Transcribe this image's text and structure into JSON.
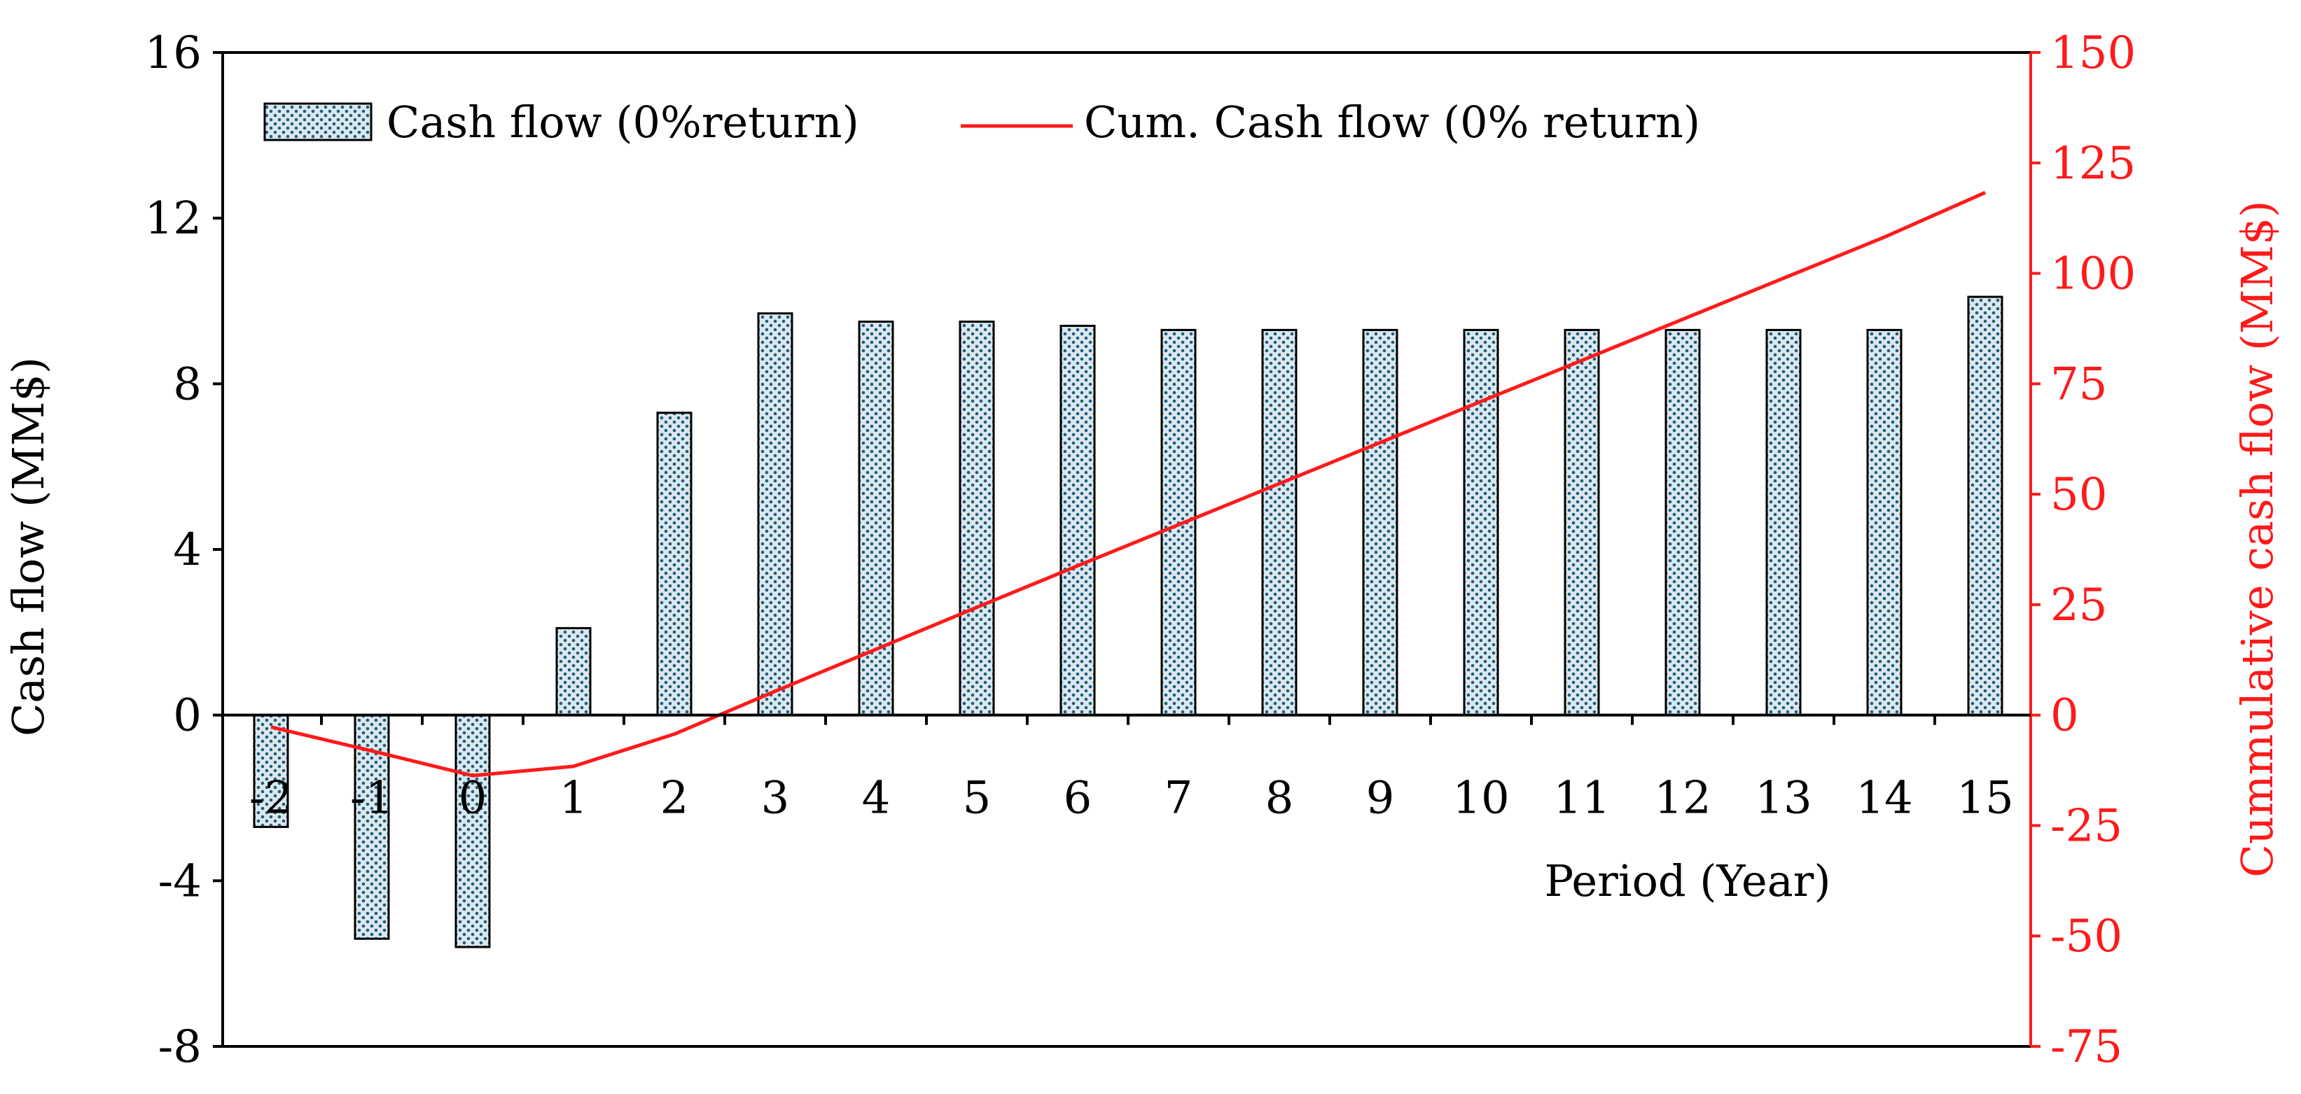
{
  "chart_data": {
    "type": "bar",
    "categories": [
      "-2",
      "-1",
      "0",
      "1",
      "2",
      "3",
      "4",
      "5",
      "6",
      "7",
      "8",
      "9",
      "10",
      "11",
      "12",
      "13",
      "14",
      "15"
    ],
    "series": [
      {
        "name": "Cash flow (0%return)",
        "type": "bar",
        "axis": "left",
        "values": [
          -2.7,
          -5.4,
          -5.6,
          2.1,
          7.3,
          9.7,
          9.5,
          9.5,
          9.4,
          9.3,
          9.3,
          9.3,
          9.3,
          9.3,
          9.3,
          9.3,
          9.3,
          10.1
        ]
      },
      {
        "name": "Cum. Cash flow (0% return)",
        "type": "line",
        "axis": "right",
        "values": [
          -2.7,
          -8.1,
          -13.7,
          -11.6,
          -4.3,
          5.4,
          14.9,
          24.4,
          33.8,
          43.1,
          52.4,
          61.7,
          71.0,
          80.3,
          89.6,
          98.9,
          108.2,
          118.3
        ]
      }
    ],
    "xlabel": "Period (Year)",
    "ylabel": "Cash flow (MM$)",
    "y2label": "Cummulative cash flow (MM$)",
    "ylim": [
      -8,
      16
    ],
    "y_ticks": [
      16,
      12,
      8,
      4,
      0,
      -4,
      -8
    ],
    "y2lim": [
      -75,
      150
    ],
    "y2_ticks": [
      150,
      125,
      100,
      75,
      50,
      25,
      0,
      -25,
      -50,
      -75
    ],
    "legend_position": "top-left",
    "grid": false,
    "colors": {
      "bar_fill": "#dce8ee",
      "bar_dots": "#1f5d7a",
      "line": "#ff1a1a",
      "right_axis": "#ff1a1a",
      "axis": "#000000"
    }
  }
}
